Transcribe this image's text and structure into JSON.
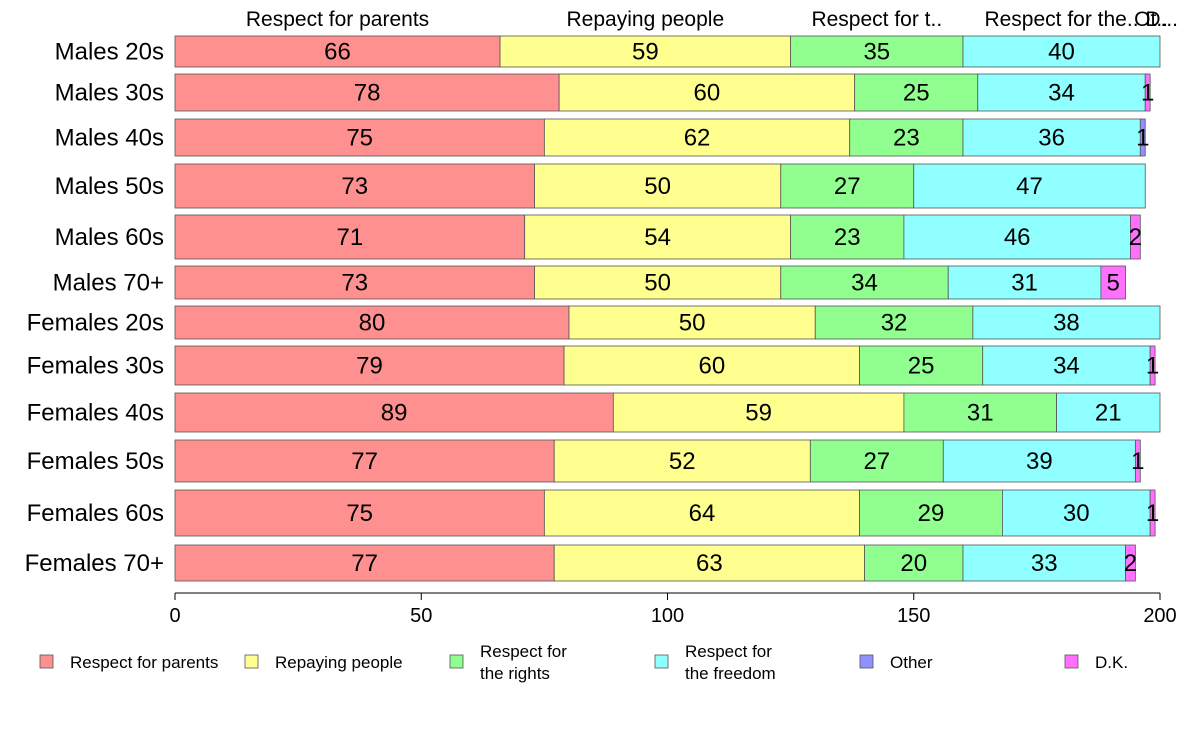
{
  "chart_data": {
    "type": "bar",
    "orientation": "horizontal",
    "stacked": true,
    "categories": [
      "Males 20s",
      "Males 30s",
      "Males 40s",
      "Males 50s",
      "Males 60s",
      "Males 70+",
      "Females 20s",
      "Females 30s",
      "Females 40s",
      "Females 50s",
      "Females 60s",
      "Females 70+"
    ],
    "series": [
      {
        "name": "Respect for parents",
        "color": "#ff9090",
        "values": [
          66,
          78,
          75,
          73,
          71,
          73,
          80,
          79,
          89,
          77,
          75,
          77
        ]
      },
      {
        "name": "Repaying people",
        "color": "#ffff90",
        "values": [
          59,
          60,
          62,
          50,
          54,
          50,
          50,
          60,
          59,
          52,
          64,
          63
        ]
      },
      {
        "name": "Respect for the rights",
        "color": "#90ff90",
        "values": [
          35,
          25,
          23,
          27,
          23,
          34,
          32,
          25,
          31,
          27,
          29,
          20
        ]
      },
      {
        "name": "Respect for the freedom",
        "color": "#90ffff",
        "values": [
          40,
          34,
          36,
          47,
          46,
          31,
          38,
          34,
          21,
          39,
          30,
          33
        ]
      },
      {
        "name": "Other",
        "color": "#9090ff",
        "values": [
          0,
          0,
          1,
          0,
          0,
          0,
          0,
          0,
          0,
          0,
          0,
          0
        ]
      },
      {
        "name": "D.K.",
        "color": "#ff70ff",
        "values": [
          0,
          1,
          0,
          0,
          2,
          5,
          0,
          1,
          0,
          1,
          1,
          2
        ]
      }
    ],
    "top_labels": [
      "Respect for parents",
      "Repaying people",
      "Respect for t..",
      "Respect for the..",
      "Ot..",
      "D..."
    ],
    "legend_labels": [
      [
        "Respect for parents"
      ],
      [
        "Repaying people"
      ],
      [
        "Respect for",
        "the rights"
      ],
      [
        "Respect for",
        "the freedom"
      ],
      [
        "Other"
      ],
      [
        "D.K."
      ]
    ],
    "xlim": [
      0,
      200
    ],
    "xticks": [
      0,
      50,
      100,
      150,
      200
    ],
    "grid": false,
    "legend_position": "bottom"
  }
}
